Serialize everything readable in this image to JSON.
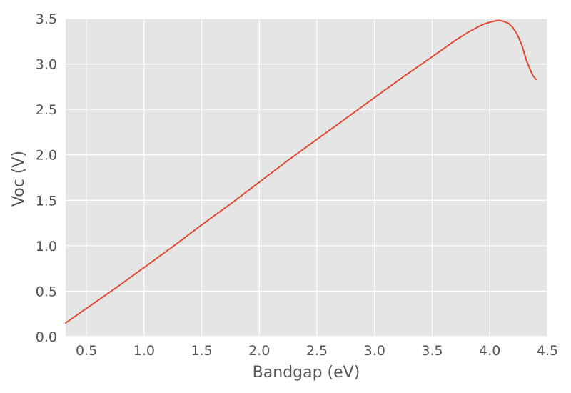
{
  "chart_data": {
    "type": "line",
    "title": "",
    "xlabel": "Bandgap (eV)",
    "ylabel": "Voc (V)",
    "xlim": [
      0.32,
      4.5
    ],
    "ylim": [
      0.0,
      3.5
    ],
    "grid": true,
    "colors": {
      "plot_background": "#e5e5e5",
      "grid": "#ffffff",
      "line": "#e24a33",
      "text": "#555555"
    },
    "x_ticks": [
      {
        "value": 0.5,
        "label": "0.5"
      },
      {
        "value": 1.0,
        "label": "1.0"
      },
      {
        "value": 1.5,
        "label": "1.5"
      },
      {
        "value": 2.0,
        "label": "2.0"
      },
      {
        "value": 2.5,
        "label": "2.5"
      },
      {
        "value": 3.0,
        "label": "3.0"
      },
      {
        "value": 3.5,
        "label": "3.5"
      },
      {
        "value": 4.0,
        "label": "4.0"
      },
      {
        "value": 4.5,
        "label": "4.5"
      }
    ],
    "y_ticks": [
      {
        "value": 0.0,
        "label": "0.0"
      },
      {
        "value": 0.5,
        "label": "0.5"
      },
      {
        "value": 1.0,
        "label": "1.0"
      },
      {
        "value": 1.5,
        "label": "1.5"
      },
      {
        "value": 2.0,
        "label": "2.0"
      },
      {
        "value": 2.5,
        "label": "2.5"
      },
      {
        "value": 3.0,
        "label": "3.0"
      },
      {
        "value": 3.5,
        "label": "3.5"
      }
    ],
    "series": [
      {
        "x": [
          0.32,
          0.5,
          0.75,
          1.0,
          1.25,
          1.5,
          1.75,
          2.0,
          2.25,
          2.5,
          2.75,
          3.0,
          3.25,
          3.5,
          3.6,
          3.7,
          3.8,
          3.9,
          3.95,
          4.0,
          4.05,
          4.08,
          4.12,
          4.16,
          4.2,
          4.24,
          4.28,
          4.32,
          4.35,
          4.37,
          4.4
        ],
        "y": [
          0.15,
          0.31,
          0.53,
          0.76,
          0.99,
          1.23,
          1.46,
          1.7,
          1.94,
          2.17,
          2.4,
          2.63,
          2.86,
          3.08,
          3.17,
          3.26,
          3.34,
          3.41,
          3.44,
          3.46,
          3.475,
          3.48,
          3.47,
          3.45,
          3.4,
          3.32,
          3.2,
          3.03,
          2.94,
          2.88,
          2.83
        ]
      }
    ]
  }
}
